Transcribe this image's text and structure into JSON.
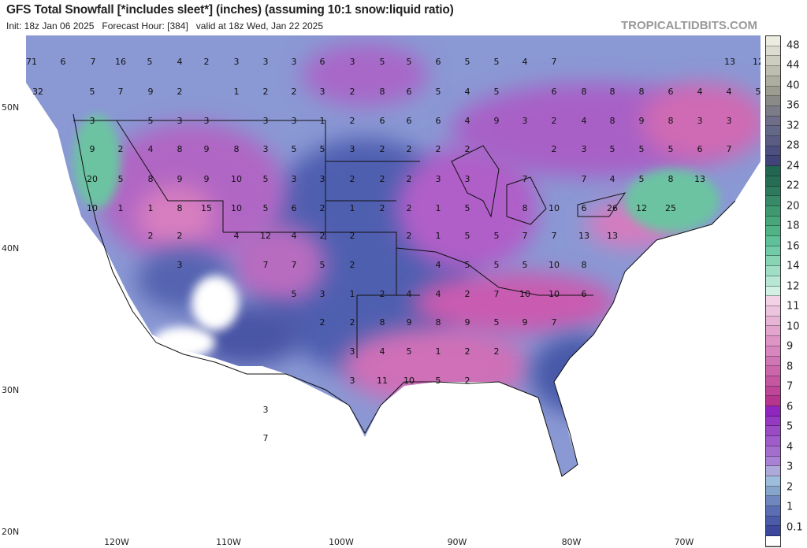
{
  "header": {
    "title": "GFS Total Snowfall [*includes sleet*] (inches) (assuming 10:1 snow:liquid ratio)",
    "subtitle": "Init: 18z Jan 06 2025   Forecast Hour: [384]   valid at 18z Wed, Jan 22 2025",
    "brand": "TROPICALTIDBITS.COM"
  },
  "axes": {
    "lat_labels": [
      "50N",
      "40N",
      "30N",
      "20N"
    ],
    "lon_labels": [
      "120W",
      "110W",
      "100W",
      "90W",
      "80W",
      "70W"
    ]
  },
  "colorbar": {
    "labels": [
      "48",
      "44",
      "40",
      "36",
      "32",
      "28",
      "24",
      "22",
      "20",
      "18",
      "16",
      "14",
      "12",
      "11",
      "10",
      "9",
      "8",
      "7",
      "6",
      "5",
      "4",
      "3",
      "2",
      "1",
      "0.1"
    ],
    "colors": [
      "#ecece0",
      "#dcdcd0",
      "#cdcdc0",
      "#bdbdb0",
      "#aeaea0",
      "#9c9c90",
      "#8a8a88",
      "#7c7c88",
      "#6e6e88",
      "#646888",
      "#5a5c84",
      "#4d4f80",
      "#404478",
      "#216650",
      "#266d55",
      "#2e7a5e",
      "#378a68",
      "#3f9970",
      "#47a67a",
      "#50b386",
      "#5fc09a",
      "#72cba8",
      "#87d5b5",
      "#a0dfc6",
      "#b8e8d5",
      "#d2f0e4",
      "#f3d2e6",
      "#edc4de",
      "#e8b4d6",
      "#e3a5ce",
      "#de95c6",
      "#d886bd",
      "#d176b4",
      "#cb66ab",
      "#c456a2",
      "#bd4699",
      "#b6368f",
      "#8e26bf",
      "#9538c2",
      "#9b4ac6",
      "#a05cca",
      "#a46ece",
      "#a882d4",
      "#adaad9",
      "#9dbddc",
      "#86a5cd",
      "#6f86be",
      "#5b6eb4",
      "#4b5aa9",
      "#3b489e",
      "#ffffff"
    ],
    "note_colors_top_to_bottom": true
  },
  "map": {
    "values": [
      "71",
      "6",
      "7",
      "16",
      "5",
      "4",
      "2",
      "3",
      "3",
      "3",
      "6",
      "3",
      "5",
      "5",
      "6",
      "5",
      "5",
      "4",
      "7",
      "13",
      "12",
      "32",
      "5",
      "7",
      "9",
      "2",
      "1",
      "2",
      "2",
      "3",
      "2",
      "8",
      "6",
      "5",
      "4",
      "5",
      "6",
      "8",
      "8",
      "8",
      "6",
      "4",
      "4",
      "5",
      "3",
      "5",
      "3",
      "3",
      "3",
      "3",
      "1",
      "2",
      "6",
      "6",
      "6",
      "4",
      "9",
      "3",
      "2",
      "4",
      "8",
      "9",
      "8",
      "3",
      "3",
      "9",
      "2",
      "4",
      "8",
      "9",
      "8",
      "3",
      "5",
      "5",
      "3",
      "2",
      "2",
      "2",
      "2",
      "2",
      "3",
      "5",
      "5",
      "5",
      "6",
      "7",
      "20",
      "5",
      "8",
      "9",
      "9",
      "10",
      "5",
      "3",
      "3",
      "2",
      "2",
      "2",
      "3",
      "3",
      "7",
      "7",
      "4",
      "5",
      "8",
      "13",
      "10",
      "1",
      "1",
      "8",
      "15",
      "10",
      "5",
      "6",
      "2",
      "1",
      "2",
      "2",
      "1",
      "5",
      "8",
      "10",
      "6",
      "26",
      "12",
      "25",
      "2",
      "2",
      "4",
      "12",
      "4",
      "2",
      "2",
      "2",
      "1",
      "5",
      "5",
      "7",
      "7",
      "13",
      "13",
      "3",
      "7",
      "7",
      "5",
      "2",
      "4",
      "5",
      "5",
      "5",
      "10",
      "8",
      "5",
      "3",
      "1",
      "2",
      "4",
      "4",
      "2",
      "7",
      "10",
      "10",
      "6",
      "2",
      "2",
      "8",
      "9",
      "8",
      "9",
      "5",
      "9",
      "7",
      "3",
      "4",
      "5",
      "1",
      "2",
      "2",
      "3",
      "11",
      "10",
      "5",
      "2",
      "3",
      "7"
    ]
  }
}
